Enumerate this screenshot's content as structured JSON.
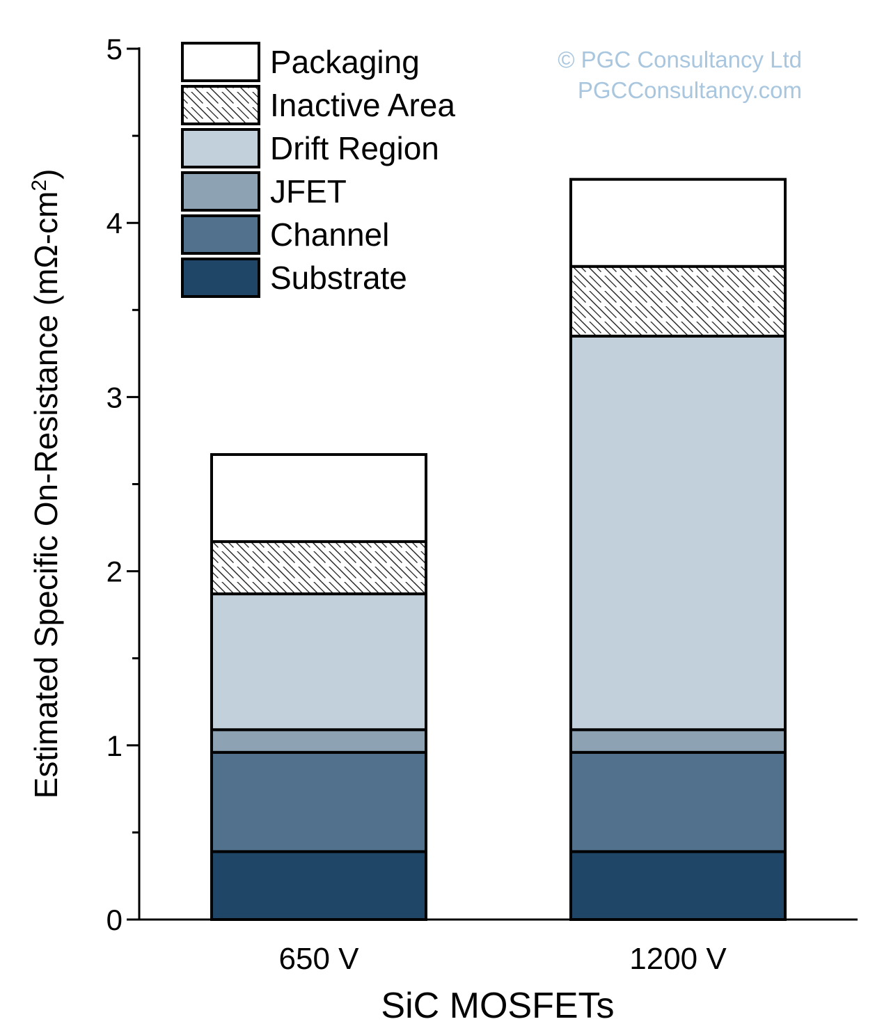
{
  "chart_data": {
    "type": "bar",
    "stacked": true,
    "title": "",
    "xlabel": "SiC MOSFETs",
    "ylabel": "Estimated Specific On-Resistance (mΩ-cm",
    "ylabel_superscript": "2",
    "ylabel_close": ")",
    "ylim": [
      0,
      5
    ],
    "yticks": [
      "0",
      "1",
      "2",
      "3",
      "4",
      "5"
    ],
    "categories": [
      "650 V",
      "1200 V"
    ],
    "legend_position": "top-left",
    "series": [
      {
        "name": "Substrate",
        "color": "#1f4666",
        "values": [
          0.39,
          0.39
        ]
      },
      {
        "name": "Channel",
        "color": "#52718c",
        "values": [
          0.57,
          0.57
        ]
      },
      {
        "name": "JFET",
        "color": "#8da3b3",
        "values": [
          0.13,
          0.13
        ]
      },
      {
        "name": "Drift Region",
        "color": "#c2d0db",
        "values": [
          0.78,
          2.26
        ]
      },
      {
        "name": "Inactive Area",
        "color": "hatch",
        "values": [
          0.3,
          0.4
        ]
      },
      {
        "name": "Packaging",
        "color": "#ffffff",
        "values": [
          0.5,
          0.5
        ]
      }
    ],
    "watermark": [
      "© PGC Consultancy Ltd",
      "PGCConsultancy.com"
    ],
    "watermark_color": "#a9c6df"
  }
}
